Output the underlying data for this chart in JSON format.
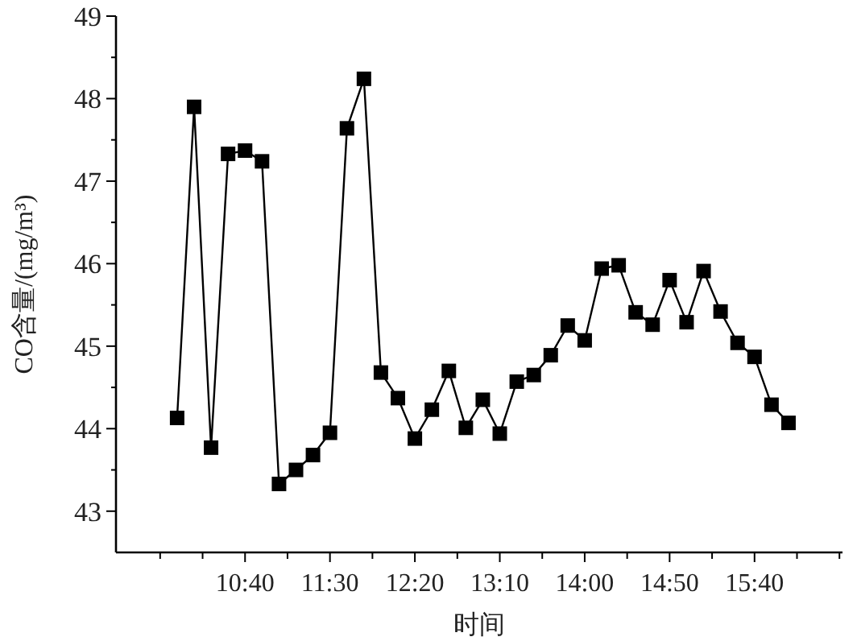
{
  "chart_data": {
    "type": "line",
    "xlabel": "时间",
    "ylabel": "CO含量/(mg/m³)",
    "marker": "square",
    "line_style": "solid",
    "grid": false,
    "x": [
      10,
      10.1667,
      10.3333,
      10.5,
      10.6667,
      10.8333,
      11,
      11.1667,
      11.3333,
      11.5,
      11.6667,
      11.8333,
      12,
      12.1667,
      12.3333,
      12.5,
      12.6667,
      12.8333,
      13,
      13.1667,
      13.3333,
      13.5,
      13.6667,
      13.8333,
      14,
      14.1667,
      14.3333,
      14.5,
      14.6667,
      14.8333,
      15,
      15.1667,
      15.3333,
      15.5,
      15.6667,
      15.8333,
      16
    ],
    "series": [
      {
        "color": "#000000",
        "values": [
          44.13,
          47.9,
          43.77,
          47.33,
          47.37,
          47.24,
          43.33,
          43.5,
          43.68,
          43.95,
          47.64,
          48.24,
          44.68,
          44.37,
          43.88,
          44.23,
          44.7,
          44.01,
          44.35,
          43.94,
          44.57,
          44.65,
          44.89,
          45.25,
          45.07,
          45.94,
          45.98,
          45.41,
          45.26,
          45.8,
          45.29,
          45.91,
          45.42,
          45.04,
          44.87,
          44.29,
          44.07
        ]
      }
    ],
    "xlim": [
      9.4,
      16.53
    ],
    "xticks": [
      {
        "value": 9.8333,
        "label": null
      },
      {
        "value": 10.25,
        "label": null
      },
      {
        "value": 10.6667,
        "label": "10:40"
      },
      {
        "value": 11.0833,
        "label": null
      },
      {
        "value": 11.5,
        "label": "11:30"
      },
      {
        "value": 11.9167,
        "label": null
      },
      {
        "value": 12.3333,
        "label": "12:20"
      },
      {
        "value": 12.75,
        "label": null
      },
      {
        "value": 13.1667,
        "label": "13:10"
      },
      {
        "value": 13.5833,
        "label": null
      },
      {
        "value": 14,
        "label": "14:00"
      },
      {
        "value": 14.4167,
        "label": null
      },
      {
        "value": 14.8333,
        "label": "14:50"
      },
      {
        "value": 15.25,
        "label": null
      },
      {
        "value": 15.6667,
        "label": "15:40"
      },
      {
        "value": 16.0833,
        "label": null
      },
      {
        "value": 16.5,
        "label": null
      }
    ],
    "ylim": [
      42.5,
      49
    ],
    "yticks": [
      43,
      {
        "value": 43.5,
        "label": null
      },
      44,
      {
        "value": 44.5,
        "label": null
      },
      45,
      {
        "value": 45.5,
        "label": null
      },
      46,
      {
        "value": 46.5,
        "label": null
      },
      47,
      {
        "value": 47.5,
        "label": null
      },
      48,
      {
        "value": 48.5,
        "label": null
      },
      49
    ]
  }
}
